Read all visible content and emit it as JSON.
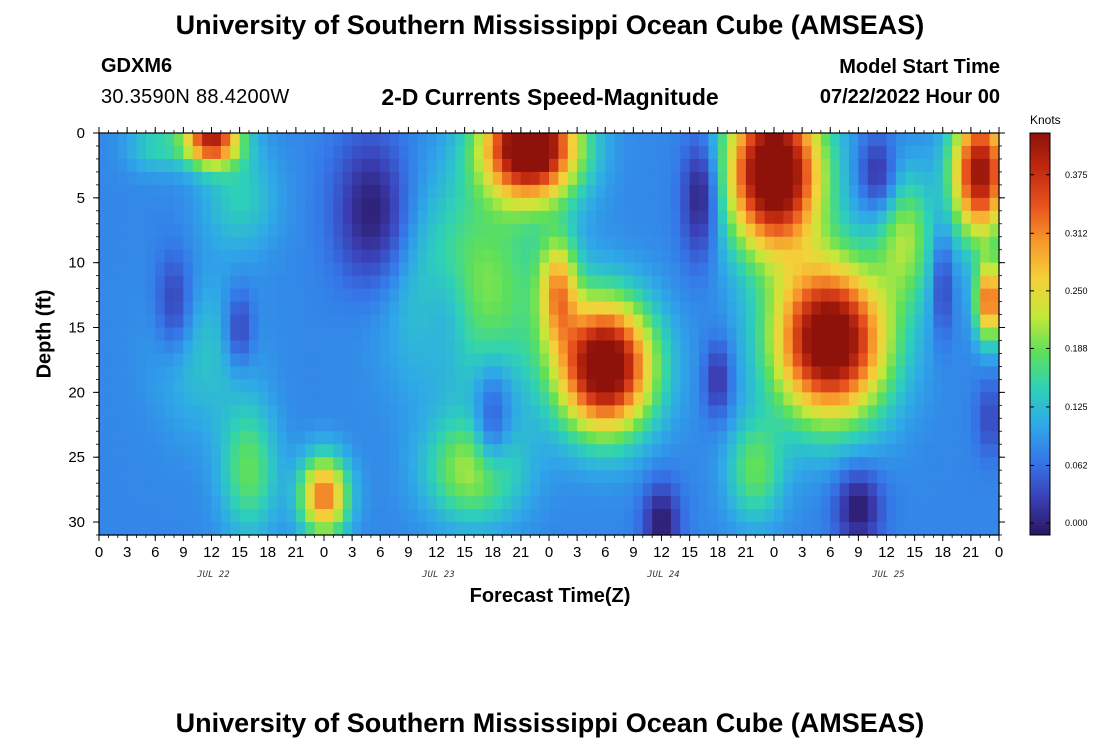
{
  "header": {
    "title": "University of Southern Mississippi Ocean Cube (AMSEAS)",
    "station_id": "GDXM6",
    "station_coords": "30.3590N  88.4200W",
    "plot_title": "2-D Currents Speed-Magnitude",
    "model_start_label": "Model Start Time",
    "model_start_value": "07/22/2022 Hour 00"
  },
  "footer": {
    "title": "University of Southern Mississippi Ocean Cube (AMSEAS)"
  },
  "chart_data": {
    "type": "heatmap",
    "xlabel": "Forecast Time(Z)",
    "ylabel": "Depth (ft)",
    "x_unit": "hours since model start",
    "xlim": [
      0,
      96
    ],
    "x_tick_labels": [
      "0",
      "3",
      "6",
      "9",
      "12",
      "15",
      "18",
      "21",
      "0",
      "3",
      "6",
      "9",
      "12",
      "15",
      "18",
      "21",
      "0",
      "3",
      "6",
      "9",
      "12",
      "15",
      "18",
      "21",
      "0",
      "3",
      "6",
      "9",
      "12",
      "15",
      "18",
      "21",
      "0"
    ],
    "day_labels": [
      "JUL 22",
      "JUL 23",
      "JUL 24",
      "JUL 25"
    ],
    "ylim": [
      31,
      0
    ],
    "y_ticks": [
      0,
      5,
      10,
      15,
      20,
      25,
      30
    ],
    "colorbar": {
      "title": "Knots",
      "ticks": [
        "0.375",
        "0.312",
        "0.250",
        "0.188",
        "0.125",
        "0.062",
        "0.000"
      ],
      "range": [
        0,
        0.42
      ],
      "colors": [
        "#2a1660",
        "#3b3fb5",
        "#3575e8",
        "#2fa8e8",
        "#2ed1b8",
        "#5ee05a",
        "#c4e83a",
        "#f4d13a",
        "#f79a2c",
        "#e8531e",
        "#c22a10",
        "#8e120a"
      ]
    },
    "speed_bands_knots": [
      0.0,
      0.04,
      0.08,
      0.13,
      0.19,
      0.25,
      0.4
    ],
    "grid": false
  }
}
